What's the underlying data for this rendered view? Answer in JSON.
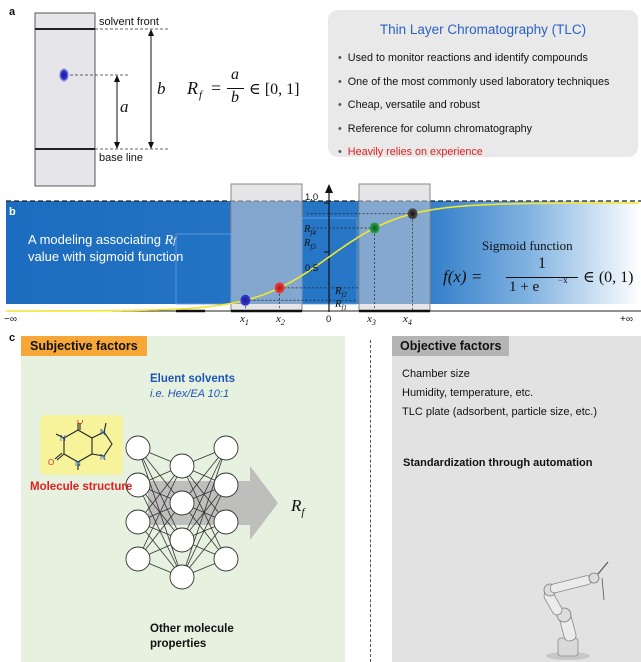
{
  "panel_a": {
    "label": "a",
    "solvent_front": "solvent front",
    "base_line": "base line",
    "len_a": "a",
    "len_b": "b",
    "formula": {
      "lhs": "R",
      "sub": "f",
      "eq": "=",
      "num": "a",
      "den": "b",
      "range": "∈ [0, 1]"
    }
  },
  "tlc_box": {
    "title": "Thin Layer Chromatography (TLC)",
    "items": [
      "Used to monitor reactions and identify compounds",
      "One of the most commonly used laboratory techniques",
      "Cheap, versatile and robust",
      "Reference for column chromatography",
      "Heavily relies on experience"
    ]
  },
  "panel_b": {
    "label": "b",
    "caption_1": "A modeling associating",
    "caption_rf": "R",
    "caption_rf_sub": "f",
    "caption_2": "value with sigmoid function",
    "sigmoid_title": "Sigmoid function",
    "sigmoid_formula": {
      "lhs": "f(x) =",
      "num": "1",
      "den": "1 + e",
      "exp": "−x",
      "range": "∈ (0, 1)"
    },
    "y_ticks": [
      "1.0",
      "0.5"
    ],
    "y_tick_values": [
      1.0,
      0.5
    ],
    "zero": "0",
    "neg_inf": "−∞",
    "pos_inf": "+∞",
    "x_labels": [
      {
        "base": "x",
        "sub": "1",
        "x": -2.2
      },
      {
        "base": "x",
        "sub": "2",
        "x": -1.3
      },
      {
        "base": "x",
        "sub": "3",
        "x": 1.2
      },
      {
        "base": "x",
        "sub": "4",
        "x": 2.2
      }
    ],
    "rf_labels": [
      {
        "base": "R",
        "sub": "f",
        "sub2": "4"
      },
      {
        "base": "R",
        "sub": "f",
        "sub2": "3"
      },
      {
        "base": "R",
        "sub": "f",
        "sub2": "2"
      },
      {
        "base": "R",
        "sub": "f",
        "sub2": "1"
      }
    ],
    "spot_colors": [
      "#2b2bb0",
      "#d72828",
      "#1f8a3a",
      "#222222"
    ],
    "curve_color": "#f2e630"
  },
  "panel_c": {
    "label": "c",
    "subjective_title": "Subjective factors",
    "eluent_title": "Eluent solvents",
    "eluent_example": "i.e. Hex/EA 10:1",
    "molecule_structure": "Molecule structure",
    "other_props_1": "Other molecule",
    "other_props_2": "properties",
    "output_base": "R",
    "output_sub": "f",
    "atoms": {
      "o": "O",
      "n": "N"
    },
    "objective_title": "Objective factors",
    "objective_items": [
      "Chamber size",
      "Humidity, temperature, etc.",
      "TLC plate (adsorbent, particle size, etc.)"
    ],
    "standardization": "Standardization through automation"
  }
}
